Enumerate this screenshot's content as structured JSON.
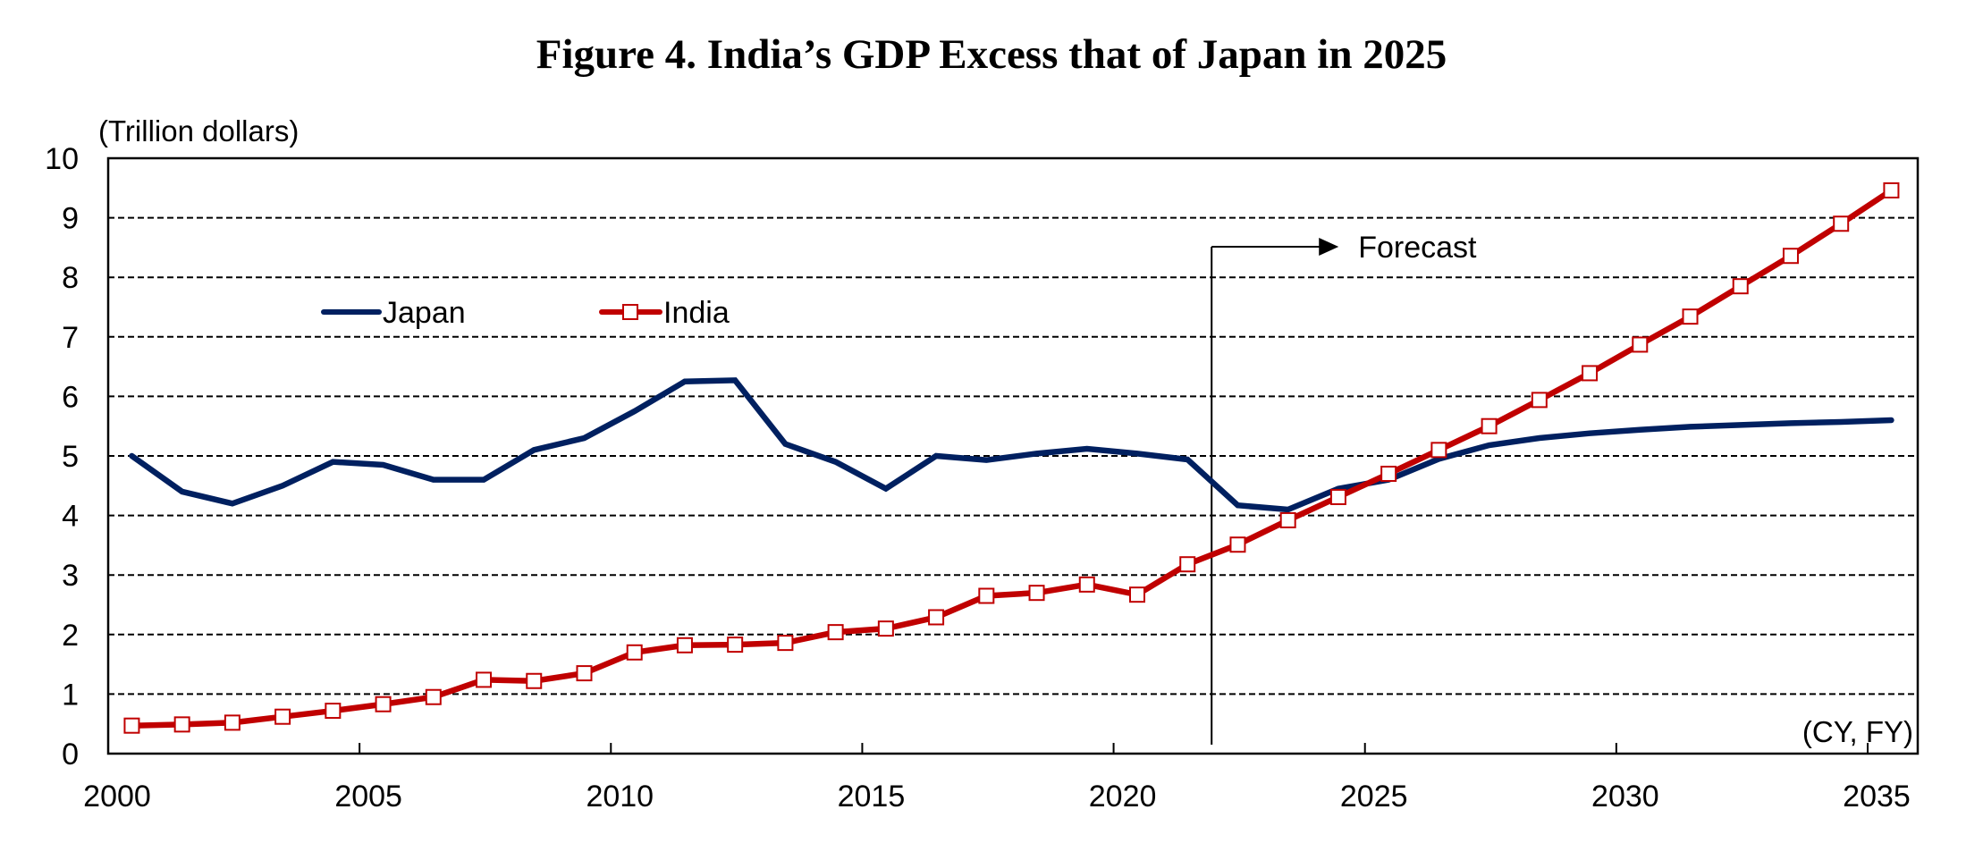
{
  "chart_data": {
    "type": "line",
    "title": "Figure 4. India’s GDP Excess that of Japan in 2025",
    "ylabel": "(Trillion dollars)",
    "xlabel": "(CY, FY)",
    "ylim": [
      0,
      10
    ],
    "xlim": [
      2000,
      2035
    ],
    "yticks": [
      "0",
      "1",
      "2",
      "3",
      "4",
      "5",
      "6",
      "7",
      "8",
      "9",
      "10"
    ],
    "xticks": [
      "2000",
      "2005",
      "2010",
      "2015",
      "2020",
      "2025",
      "2030",
      "2035"
    ],
    "grid": "horizontal-dashed",
    "legend_position": "upper-left",
    "x": [
      2000,
      2001,
      2002,
      2003,
      2004,
      2005,
      2006,
      2007,
      2008,
      2009,
      2010,
      2011,
      2012,
      2013,
      2014,
      2015,
      2016,
      2017,
      2018,
      2019,
      2020,
      2021,
      2022,
      2023,
      2024,
      2025,
      2026,
      2027,
      2028,
      2029,
      2030,
      2031,
      2032,
      2033,
      2034,
      2035
    ],
    "series": [
      {
        "name": "Japan",
        "color": "#002060",
        "marker": "none",
        "values": [
          5.0,
          4.4,
          4.2,
          4.5,
          4.9,
          4.85,
          4.6,
          4.6,
          5.1,
          5.3,
          5.75,
          6.25,
          6.27,
          5.2,
          4.9,
          4.45,
          5.0,
          4.93,
          5.04,
          5.12,
          5.04,
          4.94,
          4.17,
          4.1,
          4.45,
          4.6,
          4.95,
          5.18,
          5.3,
          5.38,
          5.44,
          5.49,
          5.52,
          5.55,
          5.57,
          5.6
        ]
      },
      {
        "name": "India",
        "color": "#C00000",
        "marker": "open-square",
        "values": [
          0.47,
          0.49,
          0.52,
          0.62,
          0.72,
          0.83,
          0.95,
          1.24,
          1.22,
          1.35,
          1.7,
          1.82,
          1.83,
          1.86,
          2.04,
          2.1,
          2.29,
          2.65,
          2.7,
          2.84,
          2.67,
          3.18,
          3.51,
          3.92,
          4.31,
          4.7,
          5.1,
          5.5,
          5.94,
          6.39,
          6.87,
          7.34,
          7.85,
          8.36,
          8.9,
          9.46
        ]
      }
    ],
    "annotations": [
      {
        "text": "Forecast",
        "start_year": 2021.95,
        "arrow": "right"
      }
    ]
  }
}
